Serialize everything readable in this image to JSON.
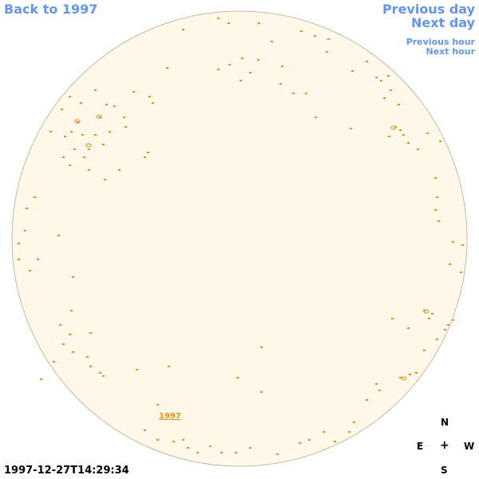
{
  "nav": {
    "back": "Back to 1997",
    "previous_day": "Previous day",
    "next_day": "Next day",
    "previous_hour": "Previous hour",
    "next_hour": "Next hour"
  },
  "marker": {
    "year_link": "1997"
  },
  "timestamp": "1997-12-27T14:29:34",
  "compass": {
    "north": "N",
    "east": "E",
    "center": "+",
    "west": "W",
    "south": "S"
  },
  "colors": {
    "link": "#6495ed",
    "disk_fill": "#fff8eb",
    "disk_edge": "#c8b89a",
    "marks": "#e8900c"
  }
}
